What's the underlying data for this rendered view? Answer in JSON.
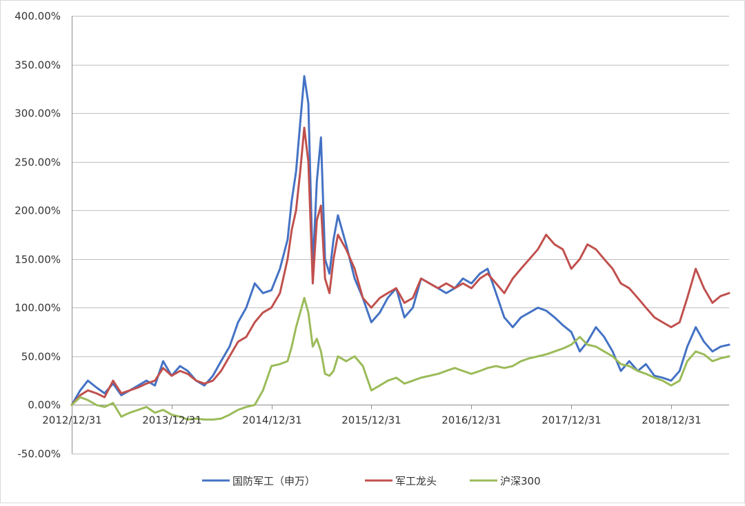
{
  "chart_data": {
    "type": "line",
    "title": "",
    "xlabel": "",
    "ylabel": "",
    "ylim": [
      -50,
      400
    ],
    "y_ticks": [
      -50,
      0,
      50,
      100,
      150,
      200,
      250,
      300,
      350,
      400
    ],
    "y_tick_labels": [
      "-50.00%",
      "0.00%",
      "50.00%",
      "100.00%",
      "150.00%",
      "200.00%",
      "250.00%",
      "300.00%",
      "350.00%",
      "400.00%"
    ],
    "xlim": [
      "2012-12-31",
      "2019-07-31"
    ],
    "x_ticks": [
      "2012-12-31",
      "2013-12-31",
      "2014-12-31",
      "2015-12-31",
      "2016-12-31",
      "2017-12-31",
      "2018-12-31"
    ],
    "x_tick_labels": [
      "2012/12/31",
      "2013/12/31",
      "2014/12/31",
      "2015/12/31",
      "2016/12/31",
      "2017/12/31",
      "2018/12/31"
    ],
    "grid": "horizontal",
    "legend_position": "bottom",
    "series": [
      {
        "name": "国防军工（申万）",
        "color": "#4472C4",
        "points": [
          [
            "2012-12-31",
            0
          ],
          [
            "2013-01-31",
            15
          ],
          [
            "2013-02-28",
            25
          ],
          [
            "2013-03-31",
            18
          ],
          [
            "2013-04-30",
            12
          ],
          [
            "2013-05-31",
            22
          ],
          [
            "2013-06-30",
            10
          ],
          [
            "2013-07-31",
            15
          ],
          [
            "2013-08-31",
            20
          ],
          [
            "2013-09-30",
            25
          ],
          [
            "2013-10-31",
            20
          ],
          [
            "2013-11-30",
            45
          ],
          [
            "2013-12-31",
            30
          ],
          [
            "2014-01-31",
            40
          ],
          [
            "2014-02-28",
            35
          ],
          [
            "2014-03-31",
            25
          ],
          [
            "2014-04-30",
            20
          ],
          [
            "2014-05-31",
            30
          ],
          [
            "2014-06-30",
            45
          ],
          [
            "2014-07-31",
            60
          ],
          [
            "2014-08-31",
            85
          ],
          [
            "2014-09-30",
            100
          ],
          [
            "2014-10-31",
            125
          ],
          [
            "2014-11-30",
            115
          ],
          [
            "2014-12-31",
            118
          ],
          [
            "2015-01-31",
            140
          ],
          [
            "2015-02-28",
            170
          ],
          [
            "2015-03-15",
            210
          ],
          [
            "2015-03-31",
            240
          ],
          [
            "2015-04-15",
            290
          ],
          [
            "2015-04-30",
            338
          ],
          [
            "2015-05-15",
            310
          ],
          [
            "2015-05-31",
            140
          ],
          [
            "2015-06-15",
            230
          ],
          [
            "2015-06-30",
            275
          ],
          [
            "2015-07-15",
            150
          ],
          [
            "2015-07-31",
            135
          ],
          [
            "2015-08-15",
            170
          ],
          [
            "2015-08-31",
            195
          ],
          [
            "2015-09-30",
            165
          ],
          [
            "2015-10-31",
            130
          ],
          [
            "2015-11-30",
            110
          ],
          [
            "2015-12-31",
            85
          ],
          [
            "2016-01-31",
            95
          ],
          [
            "2016-02-29",
            110
          ],
          [
            "2016-03-31",
            120
          ],
          [
            "2016-04-30",
            90
          ],
          [
            "2016-05-31",
            100
          ],
          [
            "2016-06-30",
            130
          ],
          [
            "2016-07-31",
            125
          ],
          [
            "2016-08-31",
            120
          ],
          [
            "2016-09-30",
            115
          ],
          [
            "2016-10-31",
            120
          ],
          [
            "2016-11-30",
            130
          ],
          [
            "2016-12-31",
            125
          ],
          [
            "2017-01-31",
            135
          ],
          [
            "2017-02-28",
            140
          ],
          [
            "2017-03-31",
            115
          ],
          [
            "2017-04-30",
            90
          ],
          [
            "2017-05-31",
            80
          ],
          [
            "2017-06-30",
            90
          ],
          [
            "2017-07-31",
            95
          ],
          [
            "2017-08-31",
            100
          ],
          [
            "2017-09-30",
            97
          ],
          [
            "2017-10-31",
            90
          ],
          [
            "2017-11-30",
            82
          ],
          [
            "2017-12-31",
            75
          ],
          [
            "2018-01-31",
            55
          ],
          [
            "2018-02-28",
            65
          ],
          [
            "2018-03-31",
            80
          ],
          [
            "2018-04-30",
            70
          ],
          [
            "2018-05-31",
            55
          ],
          [
            "2018-06-30",
            35
          ],
          [
            "2018-07-31",
            45
          ],
          [
            "2018-08-31",
            35
          ],
          [
            "2018-09-30",
            42
          ],
          [
            "2018-10-31",
            30
          ],
          [
            "2018-11-30",
            28
          ],
          [
            "2018-12-31",
            25
          ],
          [
            "2019-01-31",
            35
          ],
          [
            "2019-02-28",
            60
          ],
          [
            "2019-03-31",
            80
          ],
          [
            "2019-04-30",
            65
          ],
          [
            "2019-05-31",
            55
          ],
          [
            "2019-06-30",
            60
          ],
          [
            "2019-07-31",
            62
          ]
        ]
      },
      {
        "name": "军工龙头",
        "color": "#C0504D",
        "points": [
          [
            "2012-12-31",
            0
          ],
          [
            "2013-01-31",
            10
          ],
          [
            "2013-02-28",
            15
          ],
          [
            "2013-03-31",
            12
          ],
          [
            "2013-04-30",
            8
          ],
          [
            "2013-05-31",
            25
          ],
          [
            "2013-06-30",
            12
          ],
          [
            "2013-07-31",
            15
          ],
          [
            "2013-08-31",
            18
          ],
          [
            "2013-09-30",
            22
          ],
          [
            "2013-10-31",
            25
          ],
          [
            "2013-11-30",
            38
          ],
          [
            "2013-12-31",
            30
          ],
          [
            "2014-01-31",
            35
          ],
          [
            "2014-02-28",
            32
          ],
          [
            "2014-03-31",
            25
          ],
          [
            "2014-04-30",
            22
          ],
          [
            "2014-05-31",
            25
          ],
          [
            "2014-06-30",
            35
          ],
          [
            "2014-07-31",
            50
          ],
          [
            "2014-08-31",
            65
          ],
          [
            "2014-09-30",
            70
          ],
          [
            "2014-10-31",
            85
          ],
          [
            "2014-11-30",
            95
          ],
          [
            "2014-12-31",
            100
          ],
          [
            "2015-01-31",
            115
          ],
          [
            "2015-02-28",
            150
          ],
          [
            "2015-03-15",
            180
          ],
          [
            "2015-03-31",
            200
          ],
          [
            "2015-04-15",
            240
          ],
          [
            "2015-04-30",
            285
          ],
          [
            "2015-05-15",
            250
          ],
          [
            "2015-05-31",
            125
          ],
          [
            "2015-06-15",
            190
          ],
          [
            "2015-06-30",
            205
          ],
          [
            "2015-07-15",
            130
          ],
          [
            "2015-07-31",
            115
          ],
          [
            "2015-08-15",
            150
          ],
          [
            "2015-08-31",
            175
          ],
          [
            "2015-09-30",
            160
          ],
          [
            "2015-10-31",
            140
          ],
          [
            "2015-11-30",
            110
          ],
          [
            "2015-12-31",
            100
          ],
          [
            "2016-01-31",
            110
          ],
          [
            "2016-02-29",
            115
          ],
          [
            "2016-03-31",
            120
          ],
          [
            "2016-04-30",
            105
          ],
          [
            "2016-05-31",
            110
          ],
          [
            "2016-06-30",
            130
          ],
          [
            "2016-07-31",
            125
          ],
          [
            "2016-08-31",
            120
          ],
          [
            "2016-09-30",
            125
          ],
          [
            "2016-10-31",
            120
          ],
          [
            "2016-11-30",
            125
          ],
          [
            "2016-12-31",
            120
          ],
          [
            "2017-01-31",
            130
          ],
          [
            "2017-02-28",
            135
          ],
          [
            "2017-03-31",
            125
          ],
          [
            "2017-04-30",
            115
          ],
          [
            "2017-05-31",
            130
          ],
          [
            "2017-06-30",
            140
          ],
          [
            "2017-07-31",
            150
          ],
          [
            "2017-08-31",
            160
          ],
          [
            "2017-09-30",
            175
          ],
          [
            "2017-10-31",
            165
          ],
          [
            "2017-11-30",
            160
          ],
          [
            "2017-12-31",
            140
          ],
          [
            "2018-01-31",
            150
          ],
          [
            "2018-02-28",
            165
          ],
          [
            "2018-03-31",
            160
          ],
          [
            "2018-04-30",
            150
          ],
          [
            "2018-05-31",
            140
          ],
          [
            "2018-06-30",
            125
          ],
          [
            "2018-07-31",
            120
          ],
          [
            "2018-08-31",
            110
          ],
          [
            "2018-09-30",
            100
          ],
          [
            "2018-10-31",
            90
          ],
          [
            "2018-11-30",
            85
          ],
          [
            "2018-12-31",
            80
          ],
          [
            "2019-01-31",
            85
          ],
          [
            "2019-02-28",
            110
          ],
          [
            "2019-03-31",
            140
          ],
          [
            "2019-04-30",
            120
          ],
          [
            "2019-05-31",
            105
          ],
          [
            "2019-06-30",
            112
          ],
          [
            "2019-07-31",
            115
          ]
        ]
      },
      {
        "name": "沪深300",
        "color": "#9BBB59",
        "points": [
          [
            "2012-12-31",
            0
          ],
          [
            "2013-01-31",
            8
          ],
          [
            "2013-02-28",
            5
          ],
          [
            "2013-03-31",
            0
          ],
          [
            "2013-04-30",
            -2
          ],
          [
            "2013-05-31",
            2
          ],
          [
            "2013-06-30",
            -12
          ],
          [
            "2013-07-31",
            -8
          ],
          [
            "2013-08-31",
            -5
          ],
          [
            "2013-09-30",
            -2
          ],
          [
            "2013-10-31",
            -8
          ],
          [
            "2013-11-30",
            -5
          ],
          [
            "2013-12-31",
            -10
          ],
          [
            "2014-01-31",
            -12
          ],
          [
            "2014-02-28",
            -15
          ],
          [
            "2014-03-31",
            -14
          ],
          [
            "2014-04-30",
            -15
          ],
          [
            "2014-05-31",
            -15
          ],
          [
            "2014-06-30",
            -14
          ],
          [
            "2014-07-31",
            -10
          ],
          [
            "2014-08-31",
            -5
          ],
          [
            "2014-09-30",
            -2
          ],
          [
            "2014-10-31",
            0
          ],
          [
            "2014-11-30",
            15
          ],
          [
            "2014-12-31",
            40
          ],
          [
            "2015-01-31",
            42
          ],
          [
            "2015-02-28",
            45
          ],
          [
            "2015-03-15",
            60
          ],
          [
            "2015-03-31",
            80
          ],
          [
            "2015-04-15",
            95
          ],
          [
            "2015-04-30",
            110
          ],
          [
            "2015-05-15",
            95
          ],
          [
            "2015-05-31",
            60
          ],
          [
            "2015-06-15",
            68
          ],
          [
            "2015-06-30",
            55
          ],
          [
            "2015-07-15",
            32
          ],
          [
            "2015-07-31",
            30
          ],
          [
            "2015-08-15",
            35
          ],
          [
            "2015-08-31",
            50
          ],
          [
            "2015-09-30",
            45
          ],
          [
            "2015-10-31",
            50
          ],
          [
            "2015-11-30",
            40
          ],
          [
            "2015-12-31",
            15
          ],
          [
            "2016-01-31",
            20
          ],
          [
            "2016-02-29",
            25
          ],
          [
            "2016-03-31",
            28
          ],
          [
            "2016-04-30",
            22
          ],
          [
            "2016-05-31",
            25
          ],
          [
            "2016-06-30",
            28
          ],
          [
            "2016-07-31",
            30
          ],
          [
            "2016-08-31",
            32
          ],
          [
            "2016-09-30",
            35
          ],
          [
            "2016-10-31",
            38
          ],
          [
            "2016-11-30",
            35
          ],
          [
            "2016-12-31",
            32
          ],
          [
            "2017-01-31",
            35
          ],
          [
            "2017-02-28",
            38
          ],
          [
            "2017-03-31",
            40
          ],
          [
            "2017-04-30",
            38
          ],
          [
            "2017-05-31",
            40
          ],
          [
            "2017-06-30",
            45
          ],
          [
            "2017-07-31",
            48
          ],
          [
            "2017-08-31",
            50
          ],
          [
            "2017-09-30",
            52
          ],
          [
            "2017-10-31",
            55
          ],
          [
            "2017-11-30",
            58
          ],
          [
            "2017-12-31",
            62
          ],
          [
            "2018-01-31",
            70
          ],
          [
            "2018-02-28",
            62
          ],
          [
            "2018-03-31",
            60
          ],
          [
            "2018-04-30",
            55
          ],
          [
            "2018-05-31",
            50
          ],
          [
            "2018-06-30",
            42
          ],
          [
            "2018-07-31",
            40
          ],
          [
            "2018-08-31",
            35
          ],
          [
            "2018-09-30",
            32
          ],
          [
            "2018-10-31",
            28
          ],
          [
            "2018-11-30",
            25
          ],
          [
            "2018-12-31",
            20
          ],
          [
            "2019-01-31",
            25
          ],
          [
            "2019-02-28",
            45
          ],
          [
            "2019-03-31",
            55
          ],
          [
            "2019-04-30",
            52
          ],
          [
            "2019-05-31",
            45
          ],
          [
            "2019-06-30",
            48
          ],
          [
            "2019-07-31",
            50
          ]
        ]
      }
    ]
  }
}
